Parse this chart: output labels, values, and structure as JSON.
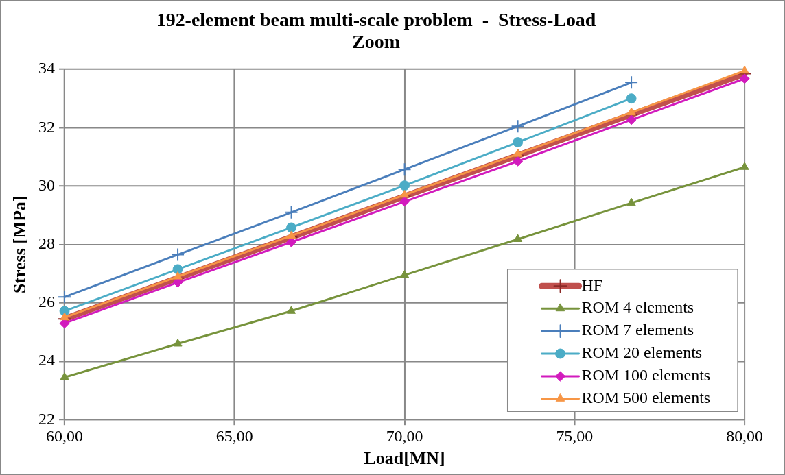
{
  "chart_data": {
    "type": "line",
    "title": "192-element beam multi-scale problem  -  Stress-Load\nZoom",
    "xlabel": "Load[MN]",
    "ylabel": "Stress [MPa]",
    "x": [
      60,
      63.33,
      66.67,
      70,
      73.33,
      76.67,
      80
    ],
    "xlim": [
      60,
      80
    ],
    "xticks": [
      {
        "value": 60,
        "label": "60,00"
      },
      {
        "value": 65,
        "label": "65,00"
      },
      {
        "value": 70,
        "label": "70,00"
      },
      {
        "value": 75,
        "label": "75,00"
      },
      {
        "value": 80,
        "label": "80,00"
      }
    ],
    "ylim": [
      22,
      34
    ],
    "yticks": [
      22,
      24,
      26,
      28,
      30,
      32,
      34
    ],
    "grid": true,
    "legend": "bottom right",
    "series": [
      {
        "name": "HF",
        "color": "#c0504d",
        "marker": "cross",
        "values": [
          25.45,
          26.85,
          28.25,
          29.65,
          31.05,
          32.45,
          33.85
        ]
      },
      {
        "name": "ROM 4 elements",
        "color": "#77933c",
        "marker": "triangle",
        "values": [
          23.45,
          24.6,
          25.72,
          26.95,
          28.18,
          29.42,
          30.65
        ]
      },
      {
        "name": "ROM 7 elements",
        "color": "#4a7ebb",
        "marker": "cross",
        "values": [
          26.2,
          27.65,
          29.1,
          30.57,
          32.05,
          33.55,
          null
        ]
      },
      {
        "name": "ROM 20 elements",
        "color": "#4bacc6",
        "marker": "circle",
        "values": [
          25.72,
          27.15,
          28.58,
          30.02,
          31.5,
          33.0,
          null
        ]
      },
      {
        "name": "ROM 100 elements",
        "color": "#d21bbd",
        "marker": "diamond",
        "values": [
          25.3,
          26.7,
          28.08,
          29.47,
          30.85,
          32.27,
          33.68
        ]
      },
      {
        "name": "ROM 500 elements",
        "color": "#f79646",
        "marker": "triangle",
        "values": [
          25.5,
          26.9,
          28.3,
          29.7,
          31.1,
          32.52,
          33.95
        ]
      }
    ]
  }
}
